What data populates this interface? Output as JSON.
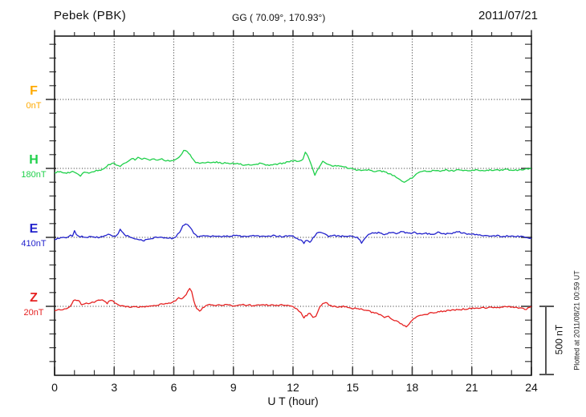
{
  "header": {
    "station": "Pebek (PBK)",
    "coords": "GG ( 70.09°, 170.93°)",
    "date": "2011/07/21"
  },
  "x_axis": {
    "label": "U T (hour)",
    "ticks": [
      "0",
      "3",
      "6",
      "9",
      "12",
      "15",
      "18",
      "21",
      "24"
    ]
  },
  "scale_bar": {
    "label": "500 nT"
  },
  "footer_note": "Plotted at 2011/08/21 00:59 UT",
  "chart_data": {
    "type": "line",
    "title": "Pebek (PBK)",
    "subtitle": "GG ( 70.09°, 170.93°)",
    "date": "2011/07/21",
    "xlabel": "U T (hour)",
    "x_range": [
      0,
      24
    ],
    "x_ticks": [
      0,
      3,
      6,
      9,
      12,
      15,
      18,
      21,
      24
    ],
    "grid": "dotted vertical lines every 3 hours; dotted horizontal line at each component baseline",
    "amplitude_scale_nT_per_division": 500,
    "scale_bar_label": "500 nT",
    "plotted_at": "Plotted at 2011/08/21 00:59 UT",
    "series": [
      {
        "name": "F",
        "baseline": "0nT",
        "color": "#ffaa00",
        "unit": "nT offset from baseline",
        "points": []
      },
      {
        "name": "H",
        "baseline": "180nT",
        "color": "#1fd04a",
        "unit": "nT offset from baseline",
        "points": [
          [
            0,
            -29
          ],
          [
            0.3,
            -23
          ],
          [
            0.6,
            -35
          ],
          [
            0.9,
            -25
          ],
          [
            1.1,
            -40
          ],
          [
            1.3,
            -52
          ],
          [
            1.5,
            -30
          ],
          [
            1.8,
            -35
          ],
          [
            2.1,
            -17
          ],
          [
            2.4,
            -8
          ],
          [
            2.7,
            23
          ],
          [
            2.9,
            41
          ],
          [
            3.1,
            25
          ],
          [
            3.3,
            12
          ],
          [
            3.5,
            35
          ],
          [
            3.7,
            55
          ],
          [
            3.9,
            76
          ],
          [
            4.05,
            62
          ],
          [
            4.2,
            81
          ],
          [
            4.4,
            64
          ],
          [
            4.6,
            76
          ],
          [
            4.8,
            64
          ],
          [
            5,
            70
          ],
          [
            5.2,
            58
          ],
          [
            5.4,
            70
          ],
          [
            5.6,
            58
          ],
          [
            5.8,
            52
          ],
          [
            6,
            58
          ],
          [
            6.2,
            70
          ],
          [
            6.35,
            99
          ],
          [
            6.5,
            128
          ],
          [
            6.6,
            134
          ],
          [
            6.75,
            113
          ],
          [
            6.9,
            76
          ],
          [
            7.1,
            47
          ],
          [
            7.3,
            35
          ],
          [
            7.6,
            41
          ],
          [
            8,
            47
          ],
          [
            8.4,
            41
          ],
          [
            8.8,
            35
          ],
          [
            9.2,
            35
          ],
          [
            9.6,
            23
          ],
          [
            10,
            29
          ],
          [
            10.4,
            35
          ],
          [
            10.8,
            23
          ],
          [
            11.2,
            29
          ],
          [
            11.6,
            41
          ],
          [
            11.9,
            52
          ],
          [
            12.1,
            58
          ],
          [
            12.3,
            47
          ],
          [
            12.5,
            70
          ],
          [
            12.62,
            116
          ],
          [
            12.75,
            90
          ],
          [
            12.9,
            29
          ],
          [
            13,
            -12
          ],
          [
            13.1,
            -46
          ],
          [
            13.3,
            0
          ],
          [
            13.5,
            52
          ],
          [
            13.7,
            35
          ],
          [
            13.9,
            23
          ],
          [
            14.2,
            17
          ],
          [
            14.5,
            12
          ],
          [
            14.9,
            0
          ],
          [
            15.2,
            -12
          ],
          [
            15.5,
            -17
          ],
          [
            15.8,
            -12
          ],
          [
            16.1,
            -23
          ],
          [
            16.4,
            -17
          ],
          [
            16.7,
            -29
          ],
          [
            17,
            -46
          ],
          [
            17.2,
            -64
          ],
          [
            17.4,
            -81
          ],
          [
            17.6,
            -99
          ],
          [
            17.75,
            -90
          ],
          [
            17.9,
            -76
          ],
          [
            18.1,
            -58
          ],
          [
            18.3,
            -29
          ],
          [
            18.5,
            -17
          ],
          [
            18.8,
            -23
          ],
          [
            19.1,
            -12
          ],
          [
            19.4,
            -17
          ],
          [
            19.7,
            -12
          ],
          [
            20,
            -17
          ],
          [
            20.4,
            -12
          ],
          [
            20.8,
            -17
          ],
          [
            21.2,
            -12
          ],
          [
            21.6,
            -17
          ],
          [
            22,
            -12
          ],
          [
            22.4,
            -12
          ],
          [
            22.8,
            -8
          ],
          [
            23.2,
            -12
          ],
          [
            23.6,
            -8
          ],
          [
            24,
            0
          ]
        ]
      },
      {
        "name": "E",
        "baseline": "410nT",
        "color": "#2222cc",
        "unit": "nT offset from baseline",
        "points": [
          [
            0,
            -12
          ],
          [
            0.3,
            -6
          ],
          [
            0.6,
            0
          ],
          [
            0.8,
            17
          ],
          [
            0.9,
            6
          ],
          [
            1,
            47
          ],
          [
            1.1,
            17
          ],
          [
            1.3,
            6
          ],
          [
            1.6,
            0
          ],
          [
            1.9,
            6
          ],
          [
            2.2,
            0
          ],
          [
            2.5,
            12
          ],
          [
            2.7,
            23
          ],
          [
            2.9,
            12
          ],
          [
            3.1,
            6
          ],
          [
            3.3,
            58
          ],
          [
            3.45,
            35
          ],
          [
            3.6,
            12
          ],
          [
            3.9,
            0
          ],
          [
            4.2,
            -17
          ],
          [
            4.5,
            -23
          ],
          [
            4.8,
            -12
          ],
          [
            5.1,
            0
          ],
          [
            5.5,
            -6
          ],
          [
            5.9,
            -6
          ],
          [
            6.1,
            6
          ],
          [
            6.3,
            35
          ],
          [
            6.45,
            87
          ],
          [
            6.6,
            99
          ],
          [
            6.8,
            81
          ],
          [
            7,
            35
          ],
          [
            7.2,
            0
          ],
          [
            7.5,
            12
          ],
          [
            7.8,
            6
          ],
          [
            8.2,
            12
          ],
          [
            8.6,
            6
          ],
          [
            9,
            12
          ],
          [
            9.5,
            6
          ],
          [
            10,
            12
          ],
          [
            10.5,
            6
          ],
          [
            11,
            12
          ],
          [
            11.5,
            6
          ],
          [
            11.8,
            12
          ],
          [
            12,
            6
          ],
          [
            12.2,
            -6
          ],
          [
            12.4,
            -23
          ],
          [
            12.55,
            -41
          ],
          [
            12.7,
            -17
          ],
          [
            12.85,
            -35
          ],
          [
            13,
            -6
          ],
          [
            13.2,
            29
          ],
          [
            13.4,
            41
          ],
          [
            13.6,
            23
          ],
          [
            13.8,
            6
          ],
          [
            14.1,
            12
          ],
          [
            14.4,
            6
          ],
          [
            14.7,
            12
          ],
          [
            15,
            6
          ],
          [
            15.3,
            -6
          ],
          [
            15.45,
            -41
          ],
          [
            15.6,
            -12
          ],
          [
            15.8,
            17
          ],
          [
            16,
            29
          ],
          [
            16.3,
            35
          ],
          [
            16.6,
            23
          ],
          [
            16.9,
            35
          ],
          [
            17.2,
            29
          ],
          [
            17.5,
            41
          ],
          [
            17.8,
            29
          ],
          [
            18.1,
            35
          ],
          [
            18.4,
            23
          ],
          [
            18.7,
            29
          ],
          [
            19,
            23
          ],
          [
            19.3,
            35
          ],
          [
            19.6,
            23
          ],
          [
            20,
            29
          ],
          [
            20.3,
            41
          ],
          [
            20.6,
            29
          ],
          [
            21,
            23
          ],
          [
            21.4,
            17
          ],
          [
            21.8,
            12
          ],
          [
            22.2,
            12
          ],
          [
            22.6,
            6
          ],
          [
            23,
            12
          ],
          [
            23.4,
            6
          ],
          [
            23.7,
            0
          ],
          [
            23.9,
            -12
          ],
          [
            24,
            -6
          ]
        ]
      },
      {
        "name": "Z",
        "baseline": "20nT",
        "color": "#e62222",
        "unit": "nT offset from baseline",
        "points": [
          [
            0,
            -35
          ],
          [
            0.2,
            -23
          ],
          [
            0.4,
            -29
          ],
          [
            0.6,
            -12
          ],
          [
            0.8,
            0
          ],
          [
            0.95,
            41
          ],
          [
            1.1,
            47
          ],
          [
            1.25,
            41
          ],
          [
            1.35,
            12
          ],
          [
            1.5,
            17
          ],
          [
            1.7,
            23
          ],
          [
            1.9,
            29
          ],
          [
            2.1,
            35
          ],
          [
            2.3,
            47
          ],
          [
            2.5,
            41
          ],
          [
            2.65,
            23
          ],
          [
            2.8,
            47
          ],
          [
            2.95,
            35
          ],
          [
            3.1,
            17
          ],
          [
            3.3,
            6
          ],
          [
            3.5,
            0
          ],
          [
            3.8,
            -6
          ],
          [
            4.1,
            0
          ],
          [
            4.4,
            -6
          ],
          [
            4.7,
            0
          ],
          [
            5,
            6
          ],
          [
            5.3,
            12
          ],
          [
            5.6,
            17
          ],
          [
            5.9,
            29
          ],
          [
            6.1,
            41
          ],
          [
            6.25,
            64
          ],
          [
            6.4,
            52
          ],
          [
            6.55,
            70
          ],
          [
            6.7,
            110
          ],
          [
            6.8,
            128
          ],
          [
            6.9,
            105
          ],
          [
            7,
            41
          ],
          [
            7.15,
            -17
          ],
          [
            7.3,
            -35
          ],
          [
            7.45,
            -12
          ],
          [
            7.6,
            6
          ],
          [
            7.8,
            12
          ],
          [
            8.1,
            6
          ],
          [
            8.5,
            12
          ],
          [
            9,
            6
          ],
          [
            9.5,
            12
          ],
          [
            10,
            6
          ],
          [
            10.5,
            12
          ],
          [
            11,
            6
          ],
          [
            11.5,
            12
          ],
          [
            11.8,
            6
          ],
          [
            12,
            -6
          ],
          [
            12.2,
            -17
          ],
          [
            12.4,
            -47
          ],
          [
            12.55,
            -81
          ],
          [
            12.7,
            -64
          ],
          [
            12.85,
            -47
          ],
          [
            13,
            -81
          ],
          [
            13.15,
            -70
          ],
          [
            13.35,
            -6
          ],
          [
            13.5,
            23
          ],
          [
            13.65,
            29
          ],
          [
            13.8,
            12
          ],
          [
            14,
            0
          ],
          [
            14.3,
            -6
          ],
          [
            14.6,
            0
          ],
          [
            14.9,
            -12
          ],
          [
            15.2,
            -17
          ],
          [
            15.5,
            -23
          ],
          [
            15.8,
            -35
          ],
          [
            16.1,
            -47
          ],
          [
            16.4,
            -64
          ],
          [
            16.6,
            -81
          ],
          [
            16.8,
            -70
          ],
          [
            17,
            -93
          ],
          [
            17.2,
            -105
          ],
          [
            17.4,
            -122
          ],
          [
            17.55,
            -134
          ],
          [
            17.7,
            -151
          ],
          [
            17.85,
            -128
          ],
          [
            18,
            -105
          ],
          [
            18.15,
            -81
          ],
          [
            18.3,
            -70
          ],
          [
            18.5,
            -64
          ],
          [
            18.7,
            -58
          ],
          [
            19,
            -47
          ],
          [
            19.3,
            -41
          ],
          [
            19.6,
            -35
          ],
          [
            20,
            -29
          ],
          [
            20.4,
            -23
          ],
          [
            20.8,
            -17
          ],
          [
            21.2,
            -12
          ],
          [
            21.6,
            -12
          ],
          [
            22,
            -6
          ],
          [
            22.4,
            -6
          ],
          [
            22.8,
            0
          ],
          [
            23.2,
            -6
          ],
          [
            23.5,
            -12
          ],
          [
            23.75,
            -23
          ],
          [
            23.9,
            -6
          ],
          [
            24,
            0
          ]
        ]
      }
    ]
  }
}
